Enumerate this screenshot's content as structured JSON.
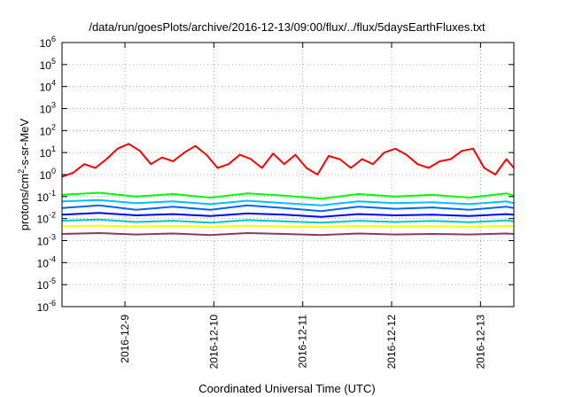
{
  "chart_data": {
    "type": "line",
    "title": "/data/run/goesPlots/archive/2016-12-13/09:00/flux/../flux/5daysEarthFluxes.txt",
    "xlabel": "Coordinated Universal Time (UTC)",
    "ylabel": {
      "prefix": "protons/cm",
      "superscript": "2",
      "suffix": "-s-sr-MeV"
    },
    "y_scale": "log",
    "ylim": [
      1e-06,
      1000000.0
    ],
    "y_ticks": [
      {
        "exp": "-6",
        "value": 1e-06
      },
      {
        "exp": "-5",
        "value": 1e-05
      },
      {
        "exp": "-4",
        "value": 0.0001
      },
      {
        "exp": "-3",
        "value": 0.001
      },
      {
        "exp": "-2",
        "value": 0.01
      },
      {
        "exp": "-1",
        "value": 0.1
      },
      {
        "exp": "0",
        "value": 1
      },
      {
        "exp": "1",
        "value": 10
      },
      {
        "exp": "2",
        "value": 100
      },
      {
        "exp": "3",
        "value": 1000
      },
      {
        "exp": "4",
        "value": 10000
      },
      {
        "exp": "5",
        "value": 100000
      },
      {
        "exp": "6",
        "value": 1000000
      }
    ],
    "xlim": [
      "2016-12-08T07:00",
      "2016-12-13T09:00"
    ],
    "x_ticks": [
      "2016-12-9",
      "2016-12-10",
      "2016-12-11",
      "2016-12-12",
      "2016-12-13"
    ],
    "x_tick_dates": [
      "2016-12-09T00:00",
      "2016-12-10T00:00",
      "2016-12-11T00:00",
      "2016-12-12T00:00",
      "2016-12-13T00:00"
    ],
    "grid": true,
    "legend": "none",
    "series": [
      {
        "color": "#ff0000",
        "x": [
          "2016-12-08T07:00",
          "2016-12-08T10:00",
          "2016-12-08T13:00",
          "2016-12-08T16:00",
          "2016-12-08T19:00",
          "2016-12-08T22:00",
          "2016-12-09T01:00",
          "2016-12-09T04:00",
          "2016-12-09T07:00",
          "2016-12-09T10:00",
          "2016-12-09T13:00",
          "2016-12-09T16:00",
          "2016-12-09T19:00",
          "2016-12-09T22:00",
          "2016-12-10T01:00",
          "2016-12-10T04:00",
          "2016-12-10T07:00",
          "2016-12-10T10:00",
          "2016-12-10T13:00",
          "2016-12-10T16:00",
          "2016-12-10T19:00",
          "2016-12-10T22:00",
          "2016-12-11T01:00",
          "2016-12-11T04:00",
          "2016-12-11T07:00",
          "2016-12-11T10:00",
          "2016-12-11T13:00",
          "2016-12-11T16:00",
          "2016-12-11T19:00",
          "2016-12-11T22:00",
          "2016-12-12T01:00",
          "2016-12-12T04:00",
          "2016-12-12T07:00",
          "2016-12-12T10:00",
          "2016-12-12T13:00",
          "2016-12-12T16:00",
          "2016-12-12T19:00",
          "2016-12-12T22:00",
          "2016-12-13T01:00",
          "2016-12-13T04:00",
          "2016-12-13T07:00",
          "2016-12-13T09:00"
        ],
        "y": [
          0.8,
          1.2,
          3,
          2,
          5,
          15,
          25,
          12,
          3,
          6,
          4,
          10,
          20,
          8,
          2,
          3,
          8,
          5,
          2,
          9,
          3,
          8,
          2,
          1,
          7,
          5,
          2,
          5,
          3,
          10,
          15,
          8,
          3,
          2,
          4,
          5,
          12,
          15,
          2,
          1,
          5,
          2
        ]
      },
      {
        "color": "#00ff00",
        "x": [
          "2016-12-08T07:00",
          "2016-12-08T17:00",
          "2016-12-09T03:00",
          "2016-12-09T13:00",
          "2016-12-09T23:00",
          "2016-12-10T09:00",
          "2016-12-10T19:00",
          "2016-12-11T05:00",
          "2016-12-11T15:00",
          "2016-12-12T01:00",
          "2016-12-12T11:00",
          "2016-12-12T21:00",
          "2016-12-13T07:00",
          "2016-12-13T09:00"
        ],
        "y": [
          0.12,
          0.15,
          0.1,
          0.13,
          0.09,
          0.14,
          0.11,
          0.08,
          0.13,
          0.1,
          0.12,
          0.09,
          0.14,
          0.11
        ]
      },
      {
        "color": "#00bfff",
        "x": [
          "2016-12-08T07:00",
          "2016-12-08T17:00",
          "2016-12-09T03:00",
          "2016-12-09T13:00",
          "2016-12-09T23:00",
          "2016-12-10T09:00",
          "2016-12-10T19:00",
          "2016-12-11T05:00",
          "2016-12-11T15:00",
          "2016-12-12T01:00",
          "2016-12-12T11:00",
          "2016-12-12T21:00",
          "2016-12-13T07:00",
          "2016-12-13T09:00"
        ],
        "y": [
          0.06,
          0.07,
          0.05,
          0.06,
          0.045,
          0.065,
          0.05,
          0.04,
          0.06,
          0.05,
          0.055,
          0.045,
          0.06,
          0.05
        ]
      },
      {
        "color": "#0066ff",
        "x": [
          "2016-12-08T07:00",
          "2016-12-08T17:00",
          "2016-12-09T03:00",
          "2016-12-09T13:00",
          "2016-12-09T23:00",
          "2016-12-10T09:00",
          "2016-12-10T19:00",
          "2016-12-11T05:00",
          "2016-12-11T15:00",
          "2016-12-12T01:00",
          "2016-12-12T11:00",
          "2016-12-12T21:00",
          "2016-12-13T07:00",
          "2016-12-13T09:00"
        ],
        "y": [
          0.03,
          0.04,
          0.025,
          0.035,
          0.025,
          0.04,
          0.03,
          0.022,
          0.035,
          0.028,
          0.032,
          0.025,
          0.035,
          0.03
        ]
      },
      {
        "color": "#0000ff",
        "x": [
          "2016-12-08T07:00",
          "2016-12-08T17:00",
          "2016-12-09T03:00",
          "2016-12-09T13:00",
          "2016-12-09T23:00",
          "2016-12-10T09:00",
          "2016-12-10T19:00",
          "2016-12-11T05:00",
          "2016-12-11T15:00",
          "2016-12-12T01:00",
          "2016-12-12T11:00",
          "2016-12-12T21:00",
          "2016-12-13T07:00",
          "2016-12-13T09:00"
        ],
        "y": [
          0.015,
          0.018,
          0.014,
          0.016,
          0.013,
          0.017,
          0.015,
          0.012,
          0.016,
          0.014,
          0.015,
          0.013,
          0.016,
          0.015
        ]
      },
      {
        "color": "#00c8c8",
        "x": [
          "2016-12-08T07:00",
          "2016-12-08T17:00",
          "2016-12-09T03:00",
          "2016-12-09T13:00",
          "2016-12-09T23:00",
          "2016-12-10T09:00",
          "2016-12-10T19:00",
          "2016-12-11T05:00",
          "2016-12-11T15:00",
          "2016-12-12T01:00",
          "2016-12-12T11:00",
          "2016-12-12T21:00",
          "2016-12-13T07:00",
          "2016-12-13T09:00"
        ],
        "y": [
          0.008,
          0.009,
          0.007,
          0.008,
          0.0065,
          0.0085,
          0.0075,
          0.0065,
          0.008,
          0.007,
          0.0078,
          0.0068,
          0.0082,
          0.0075
        ]
      },
      {
        "color": "#ffff00",
        "x": [
          "2016-12-08T07:00",
          "2016-12-08T17:00",
          "2016-12-09T03:00",
          "2016-12-09T13:00",
          "2016-12-09T23:00",
          "2016-12-10T09:00",
          "2016-12-10T19:00",
          "2016-12-11T05:00",
          "2016-12-11T15:00",
          "2016-12-12T01:00",
          "2016-12-12T11:00",
          "2016-12-12T21:00",
          "2016-12-13T07:00",
          "2016-12-13T09:00"
        ],
        "y": [
          0.0045,
          0.0048,
          0.0043,
          0.0046,
          0.0042,
          0.0047,
          0.0044,
          0.0042,
          0.0046,
          0.0044,
          0.0045,
          0.0043,
          0.0046,
          0.0045
        ]
      },
      {
        "color": "#8b3a62",
        "x": [
          "2016-12-08T07:00",
          "2016-12-08T17:00",
          "2016-12-09T03:00",
          "2016-12-09T13:00",
          "2016-12-09T23:00",
          "2016-12-10T09:00",
          "2016-12-10T19:00",
          "2016-12-11T05:00",
          "2016-12-11T15:00",
          "2016-12-12T01:00",
          "2016-12-12T11:00",
          "2016-12-12T21:00",
          "2016-12-13T07:00",
          "2016-12-13T09:00"
        ],
        "y": [
          0.002,
          0.0022,
          0.0019,
          0.0021,
          0.0018,
          0.0022,
          0.002,
          0.0018,
          0.0021,
          0.0019,
          0.002,
          0.0019,
          0.0021,
          0.002
        ]
      }
    ]
  }
}
